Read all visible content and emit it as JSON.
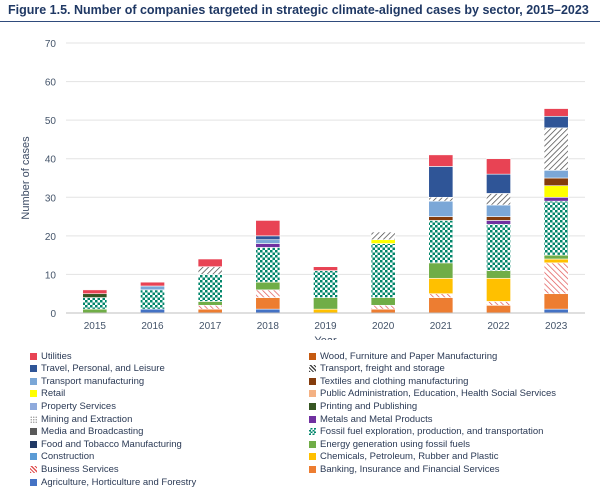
{
  "figure": {
    "title": "Figure 1.5. Number of companies targeted in strategic climate-aligned cases by sector, 2015–2023"
  },
  "chart_data": {
    "type": "bar",
    "stacked": true,
    "title": "Figure 1.5. Number of companies targeted in strategic climate-aligned cases by sector, 2015–2023",
    "xlabel": "Year",
    "ylabel": "Number of cases",
    "ylim": [
      0,
      70
    ],
    "yticks": [
      0,
      10,
      20,
      30,
      40,
      50,
      60,
      70
    ],
    "grid": true,
    "legend_position": "bottom",
    "categories": [
      "2015",
      "2016",
      "2017",
      "2018",
      "2019",
      "2020",
      "2021",
      "2022",
      "2023"
    ],
    "series": [
      {
        "name": "Agriculture, Horticulture and Forestry",
        "color": "#4472c4",
        "pattern": "solid",
        "values": [
          0,
          1,
          0,
          1,
          0,
          0,
          0,
          0,
          1
        ]
      },
      {
        "name": "Banking, Insurance and Financial Services",
        "color": "#ed7d31",
        "pattern": "solid",
        "values": [
          0,
          0,
          1,
          3,
          0,
          1,
          4,
          2,
          4
        ]
      },
      {
        "name": "Business Services",
        "color": "#e05050",
        "pattern": "hatch",
        "values": [
          0,
          0,
          1,
          2,
          0,
          1,
          1,
          1,
          8
        ]
      },
      {
        "name": "Chemicals, Petroleum, Rubber and Plastic",
        "color": "#ffc000",
        "pattern": "solid",
        "values": [
          0,
          0,
          0,
          0,
          1,
          0,
          4,
          6,
          1
        ]
      },
      {
        "name": "Construction",
        "color": "#5b9bd5",
        "pattern": "solid",
        "values": [
          0,
          0,
          0,
          0,
          0,
          0,
          0,
          0,
          0
        ]
      },
      {
        "name": "Energy generation using fossil fuels",
        "color": "#70ad47",
        "pattern": "solid",
        "values": [
          1,
          0,
          1,
          2,
          3,
          2,
          4,
          2,
          1
        ]
      },
      {
        "name": "Food and Tobacco Manufacturing",
        "color": "#203864",
        "pattern": "solid",
        "values": [
          0,
          0,
          0,
          0,
          0,
          0,
          0,
          0,
          0
        ]
      },
      {
        "name": "Fossil fuel exploration, production, and transportation",
        "color": "#00866b",
        "pattern": "check",
        "values": [
          3,
          5,
          7,
          9,
          7,
          14,
          11,
          12,
          14
        ]
      },
      {
        "name": "Media and Broadcasting",
        "color": "#595959",
        "pattern": "solid",
        "values": [
          0,
          0,
          0,
          0,
          0,
          0,
          0,
          0,
          0
        ]
      },
      {
        "name": "Metals and Metal Products",
        "color": "#7030a0",
        "pattern": "solid",
        "values": [
          0,
          0,
          0,
          1,
          0,
          0,
          0,
          1,
          1
        ]
      },
      {
        "name": "Mining and Extraction",
        "color": "#c9c9c9",
        "pattern": "dots",
        "values": [
          0,
          0,
          0,
          0,
          0,
          0,
          0,
          0,
          0
        ]
      },
      {
        "name": "Printing and Publishing",
        "color": "#375623",
        "pattern": "solid",
        "values": [
          1,
          0,
          0,
          0,
          0,
          0,
          0,
          0,
          0
        ]
      },
      {
        "name": "Property Services",
        "color": "#8faadc",
        "pattern": "solid",
        "values": [
          0,
          0,
          0,
          0,
          0,
          0,
          0,
          0,
          0
        ]
      },
      {
        "name": "Public Administration, Education, Health Social Services",
        "color": "#f4b183",
        "pattern": "solid",
        "values": [
          0,
          0,
          0,
          0,
          0,
          0,
          0,
          0,
          0
        ]
      },
      {
        "name": "Retail",
        "color": "#ffff00",
        "pattern": "solid",
        "values": [
          0,
          0,
          0,
          0,
          0,
          1,
          0,
          0,
          3
        ]
      },
      {
        "name": "Textiles and clothing manufacturing",
        "color": "#843c0c",
        "pattern": "solid",
        "values": [
          0,
          0,
          0,
          0,
          0,
          0,
          1,
          1,
          2
        ]
      },
      {
        "name": "Transport manufacturing",
        "color": "#7ba7d7",
        "pattern": "solid",
        "values": [
          0,
          1,
          0,
          1,
          0,
          0,
          4,
          3,
          2
        ]
      },
      {
        "name": "Transport, freight and storage",
        "color": "#404040",
        "pattern": "hatch",
        "values": [
          0,
          0,
          2,
          0,
          0,
          2,
          1,
          3,
          11
        ]
      },
      {
        "name": "Travel, Personal, and Leisure",
        "color": "#2f5597",
        "pattern": "solid",
        "values": [
          0,
          0,
          0,
          1,
          0,
          0,
          8,
          5,
          3
        ]
      },
      {
        "name": "Wood, Furniture and Paper Manufacturing",
        "color": "#c55a11",
        "pattern": "solid",
        "values": [
          0,
          0,
          0,
          0,
          0,
          0,
          0,
          0,
          0
        ]
      },
      {
        "name": "Utilities",
        "color": "#e84354",
        "pattern": "solid",
        "values": [
          1,
          1,
          2,
          4,
          1,
          0,
          3,
          4,
          2
        ]
      }
    ],
    "legend": [
      {
        "label": "Utilities",
        "color": "#e84354",
        "pattern": "solid"
      },
      {
        "label": "Wood, Furniture and Paper Manufacturing",
        "color": "#c55a11",
        "pattern": "solid"
      },
      {
        "label": "Travel, Personal, and Leisure",
        "color": "#2f5597",
        "pattern": "solid"
      },
      {
        "label": "Transport, freight and storage",
        "color": "#404040",
        "pattern": "hatch"
      },
      {
        "label": "Transport manufacturing",
        "color": "#7ba7d7",
        "pattern": "solid"
      },
      {
        "label": "Textiles and clothing manufacturing",
        "color": "#843c0c",
        "pattern": "solid"
      },
      {
        "label": "Retail",
        "color": "#ffff00",
        "pattern": "solid"
      },
      {
        "label": "Public Administration, Education, Health Social Services",
        "color": "#f4b183",
        "pattern": "solid"
      },
      {
        "label": "Property Services",
        "color": "#8faadc",
        "pattern": "solid"
      },
      {
        "label": "Printing and Publishing",
        "color": "#375623",
        "pattern": "solid"
      },
      {
        "label": "Mining and Extraction",
        "color": "#c9c9c9",
        "pattern": "dots"
      },
      {
        "label": "Metals and Metal Products",
        "color": "#7030a0",
        "pattern": "solid"
      },
      {
        "label": "Media and Broadcasting",
        "color": "#595959",
        "pattern": "solid"
      },
      {
        "label": "Fossil fuel exploration, production, and transportation",
        "color": "#00866b",
        "pattern": "check"
      },
      {
        "label": "Food and Tobacco Manufacturing",
        "color": "#203864",
        "pattern": "solid"
      },
      {
        "label": "Energy generation using fossil fuels",
        "color": "#70ad47",
        "pattern": "solid"
      },
      {
        "label": "Construction",
        "color": "#5b9bd5",
        "pattern": "solid"
      },
      {
        "label": "Chemicals, Petroleum, Rubber and Plastic",
        "color": "#ffc000",
        "pattern": "solid"
      },
      {
        "label": "Business Services",
        "color": "#e05050",
        "pattern": "hatch"
      },
      {
        "label": "Banking, Insurance and Financial Services",
        "color": "#ed7d31",
        "pattern": "solid"
      },
      {
        "label": "Agriculture, Horticulture and Forestry",
        "color": "#4472c4",
        "pattern": "solid"
      }
    ]
  }
}
